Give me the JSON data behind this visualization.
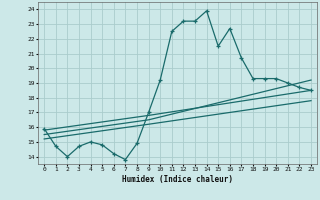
{
  "xlabel": "Humidex (Indice chaleur)",
  "ylabel": "",
  "xlim": [
    -0.5,
    23.5
  ],
  "ylim": [
    13.5,
    24.5
  ],
  "xticks": [
    0,
    1,
    2,
    3,
    4,
    5,
    6,
    7,
    8,
    9,
    10,
    11,
    12,
    13,
    14,
    15,
    16,
    17,
    18,
    19,
    20,
    21,
    22,
    23
  ],
  "yticks": [
    14,
    15,
    16,
    17,
    18,
    19,
    20,
    21,
    22,
    23,
    24
  ],
  "bg_color": "#cce8e8",
  "grid_color": "#aacccc",
  "line_color": "#1a6b6b",
  "line1_x": [
    0,
    1,
    2,
    3,
    4,
    5,
    6,
    7,
    8,
    9,
    10,
    11,
    12,
    13,
    14,
    15,
    16,
    17,
    18,
    19,
    20,
    21,
    22,
    23
  ],
  "line1_y": [
    15.9,
    14.7,
    14.0,
    14.7,
    15.0,
    14.8,
    14.2,
    13.8,
    14.9,
    17.0,
    19.2,
    22.5,
    23.2,
    23.2,
    23.9,
    21.5,
    22.7,
    20.7,
    19.3,
    19.3,
    19.3,
    19.0,
    18.7,
    18.5
  ],
  "line2_x": [
    0,
    9,
    23
  ],
  "line2_y": [
    15.8,
    16.8,
    18.5
  ],
  "line3_x": [
    0,
    9,
    23
  ],
  "line3_y": [
    15.5,
    16.5,
    19.2
  ],
  "line4_x": [
    0,
    9,
    23
  ],
  "line4_y": [
    15.2,
    16.2,
    17.8
  ]
}
